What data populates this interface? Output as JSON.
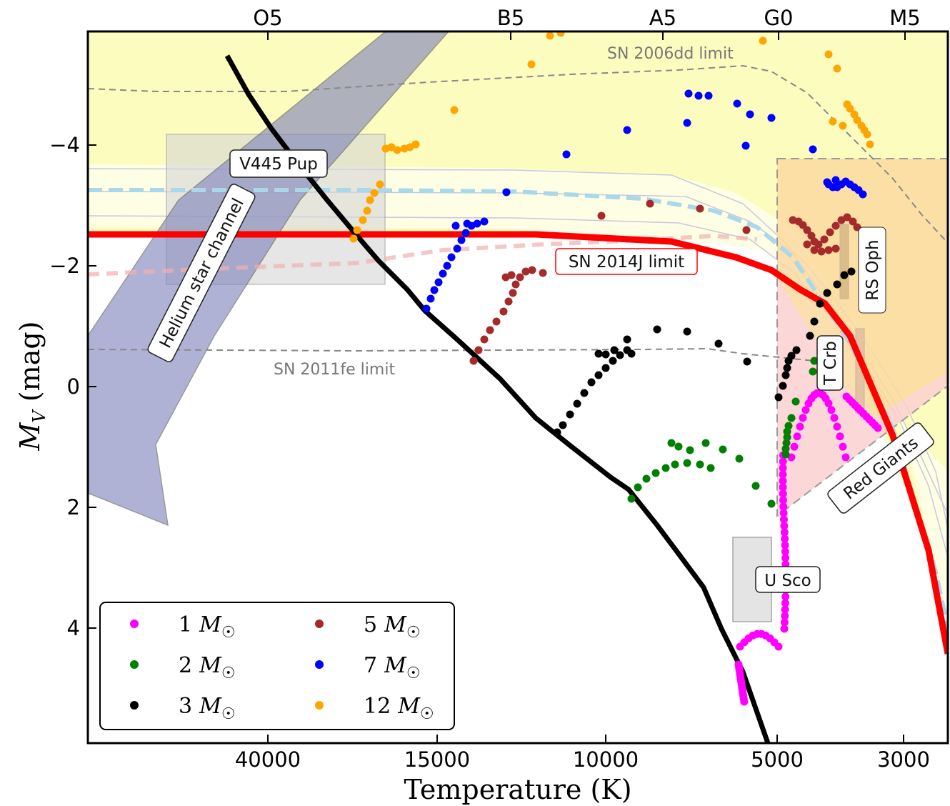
{
  "chart_data": {
    "type": "scatter",
    "xlabel": "Temperature (K)",
    "ylabel": "M_V (mag)",
    "x_ticks": [
      "40000",
      "15000",
      "10000",
      "5000",
      "3000"
    ],
    "y_ticks": [
      "−4",
      "−2",
      "0",
      "2",
      "4"
    ],
    "spectral_ticks": [
      "O5",
      "B5",
      "A5",
      "G0",
      "M5"
    ],
    "ylim": [
      6,
      -5.8
    ],
    "y_inverted": true,
    "limits": [
      {
        "name": "SN 2014J limit",
        "color": "#ff0000"
      },
      {
        "name": "SN 2011fe limit",
        "color": "#808080"
      },
      {
        "name": "SN 2006dd limit",
        "color": "#808080"
      }
    ],
    "regions": [
      "Helium star channel",
      "V445 Pup",
      "Red Giants",
      "U Sco",
      "RS Oph",
      "T Crb"
    ],
    "series": [
      {
        "name": "1 M☉",
        "label_num": "1",
        "color": "#ff00ff"
      },
      {
        "name": "2 M☉",
        "label_num": "2",
        "color": "#008000"
      },
      {
        "name": "3 M☉",
        "label_num": "3",
        "color": "#000000"
      },
      {
        "name": "5 M☉",
        "label_num": "5",
        "color": "#a52a2a"
      },
      {
        "name": "7 M☉",
        "label_num": "7",
        "color": "#0000ff"
      },
      {
        "name": "12 M☉",
        "label_num": "12",
        "color": "#ffa500"
      }
    ],
    "legend_placement": "lower-left",
    "grid": false
  }
}
